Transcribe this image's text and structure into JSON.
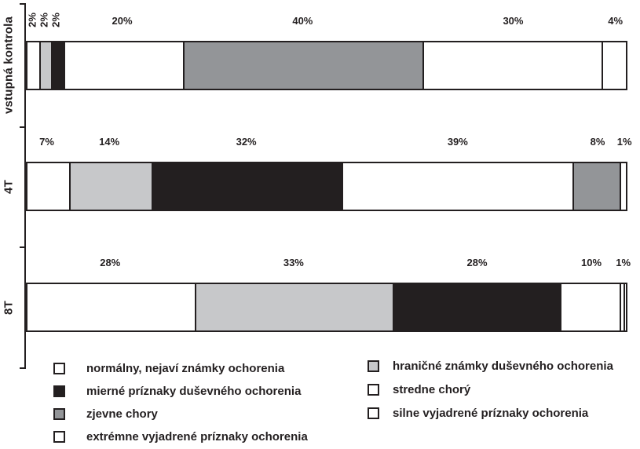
{
  "chart_data": {
    "type": "bar",
    "variant": "horizontal-stacked-100pct",
    "unit": "%",
    "grid": false,
    "categories": [
      "vstupná kontrola",
      "4T",
      "8T"
    ],
    "palette": {
      "white": "#ffffff",
      "black": "#231f20",
      "gray": "#939598",
      "lightgray": "#c7c8ca",
      "border": "#231f20"
    },
    "rows": [
      {
        "label": "vstupná kontrola",
        "segments": [
          {
            "value": 2,
            "label": "2%",
            "color": "white",
            "rotated": true
          },
          {
            "value": 2,
            "label": "2%",
            "color": "lightgray",
            "rotated": true
          },
          {
            "value": 2,
            "label": "2%",
            "color": "black",
            "rotated": true
          },
          {
            "value": 20,
            "label": "20%",
            "color": "white"
          },
          {
            "value": 40,
            "label": "40%",
            "color": "gray"
          },
          {
            "value": 30,
            "label": "30%",
            "color": "white"
          },
          {
            "value": 4,
            "label": "4%",
            "color": "white"
          }
        ]
      },
      {
        "label": "4T",
        "segments": [
          {
            "value": 7,
            "label": "7%",
            "color": "white"
          },
          {
            "value": 14,
            "label": "14%",
            "color": "lightgray"
          },
          {
            "value": 32,
            "label": "32%",
            "color": "black"
          },
          {
            "value": 39,
            "label": "39%",
            "color": "white"
          },
          {
            "value": 8,
            "label": "8%",
            "color": "gray"
          },
          {
            "value": 1,
            "label": "1%",
            "color": "white"
          }
        ]
      },
      {
        "label": "8T",
        "segments": [
          {
            "value": 28,
            "label": "28%",
            "color": "white"
          },
          {
            "value": 33,
            "label": "33%",
            "color": "lightgray"
          },
          {
            "value": 28,
            "label": "28%",
            "color": "black"
          },
          {
            "value": 10,
            "label": "10%",
            "color": "white"
          },
          {
            "value": 0.6,
            "label": "1%",
            "color": "white"
          },
          {
            "value": 0.4,
            "label": "",
            "color": "white"
          }
        ]
      }
    ],
    "legend_left": [
      {
        "color": "white",
        "label": "normálny, nejaví známky ochorenia"
      },
      {
        "color": "black",
        "label": "mierné príznaky duševného ochorenia"
      },
      {
        "color": "gray",
        "label": "zjevne chory"
      },
      {
        "color": "white",
        "label": "extrémne vyjadrené príznaky ochorenia"
      }
    ],
    "legend_right": [
      {
        "color": "lightgray",
        "label": "hraničné známky duševného ochorenia"
      },
      {
        "color": "white",
        "label": "stredne chorý"
      },
      {
        "color": "white",
        "label": "silne vyjadrené príznaky ochorenia"
      }
    ]
  }
}
